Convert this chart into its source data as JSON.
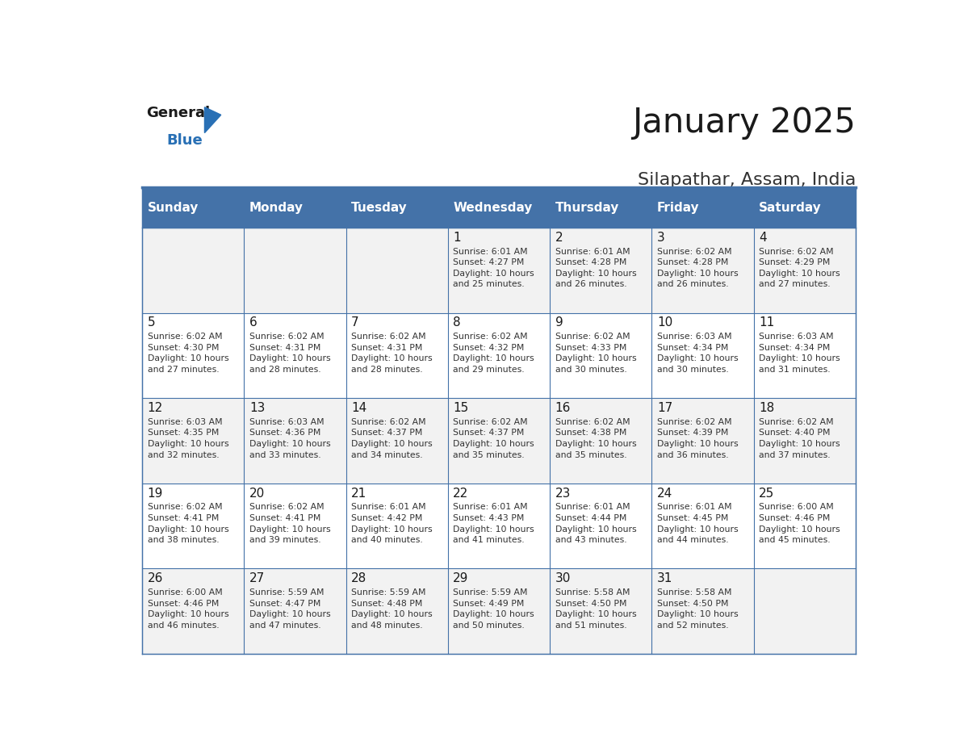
{
  "title": "January 2025",
  "subtitle": "Silapathar, Assam, India",
  "days_of_week": [
    "Sunday",
    "Monday",
    "Tuesday",
    "Wednesday",
    "Thursday",
    "Friday",
    "Saturday"
  ],
  "header_bg": "#4472a8",
  "header_text": "#ffffff",
  "row_bg_even": "#f2f2f2",
  "row_bg_odd": "#ffffff",
  "cell_text_color": "#333333",
  "day_num_color": "#1a1a1a",
  "border_color": "#4472a8",
  "title_color": "#1a1a1a",
  "subtitle_color": "#333333",
  "logo_general_color": "#1a1a1a",
  "logo_blue_color": "#2970b5",
  "calendar_data": [
    [
      {
        "day": 0,
        "info": ""
      },
      {
        "day": 0,
        "info": ""
      },
      {
        "day": 0,
        "info": ""
      },
      {
        "day": 1,
        "info": "Sunrise: 6:01 AM\nSunset: 4:27 PM\nDaylight: 10 hours\nand 25 minutes."
      },
      {
        "day": 2,
        "info": "Sunrise: 6:01 AM\nSunset: 4:28 PM\nDaylight: 10 hours\nand 26 minutes."
      },
      {
        "day": 3,
        "info": "Sunrise: 6:02 AM\nSunset: 4:28 PM\nDaylight: 10 hours\nand 26 minutes."
      },
      {
        "day": 4,
        "info": "Sunrise: 6:02 AM\nSunset: 4:29 PM\nDaylight: 10 hours\nand 27 minutes."
      }
    ],
    [
      {
        "day": 5,
        "info": "Sunrise: 6:02 AM\nSunset: 4:30 PM\nDaylight: 10 hours\nand 27 minutes."
      },
      {
        "day": 6,
        "info": "Sunrise: 6:02 AM\nSunset: 4:31 PM\nDaylight: 10 hours\nand 28 minutes."
      },
      {
        "day": 7,
        "info": "Sunrise: 6:02 AM\nSunset: 4:31 PM\nDaylight: 10 hours\nand 28 minutes."
      },
      {
        "day": 8,
        "info": "Sunrise: 6:02 AM\nSunset: 4:32 PM\nDaylight: 10 hours\nand 29 minutes."
      },
      {
        "day": 9,
        "info": "Sunrise: 6:02 AM\nSunset: 4:33 PM\nDaylight: 10 hours\nand 30 minutes."
      },
      {
        "day": 10,
        "info": "Sunrise: 6:03 AM\nSunset: 4:34 PM\nDaylight: 10 hours\nand 30 minutes."
      },
      {
        "day": 11,
        "info": "Sunrise: 6:03 AM\nSunset: 4:34 PM\nDaylight: 10 hours\nand 31 minutes."
      }
    ],
    [
      {
        "day": 12,
        "info": "Sunrise: 6:03 AM\nSunset: 4:35 PM\nDaylight: 10 hours\nand 32 minutes."
      },
      {
        "day": 13,
        "info": "Sunrise: 6:03 AM\nSunset: 4:36 PM\nDaylight: 10 hours\nand 33 minutes."
      },
      {
        "day": 14,
        "info": "Sunrise: 6:02 AM\nSunset: 4:37 PM\nDaylight: 10 hours\nand 34 minutes."
      },
      {
        "day": 15,
        "info": "Sunrise: 6:02 AM\nSunset: 4:37 PM\nDaylight: 10 hours\nand 35 minutes."
      },
      {
        "day": 16,
        "info": "Sunrise: 6:02 AM\nSunset: 4:38 PM\nDaylight: 10 hours\nand 35 minutes."
      },
      {
        "day": 17,
        "info": "Sunrise: 6:02 AM\nSunset: 4:39 PM\nDaylight: 10 hours\nand 36 minutes."
      },
      {
        "day": 18,
        "info": "Sunrise: 6:02 AM\nSunset: 4:40 PM\nDaylight: 10 hours\nand 37 minutes."
      }
    ],
    [
      {
        "day": 19,
        "info": "Sunrise: 6:02 AM\nSunset: 4:41 PM\nDaylight: 10 hours\nand 38 minutes."
      },
      {
        "day": 20,
        "info": "Sunrise: 6:02 AM\nSunset: 4:41 PM\nDaylight: 10 hours\nand 39 minutes."
      },
      {
        "day": 21,
        "info": "Sunrise: 6:01 AM\nSunset: 4:42 PM\nDaylight: 10 hours\nand 40 minutes."
      },
      {
        "day": 22,
        "info": "Sunrise: 6:01 AM\nSunset: 4:43 PM\nDaylight: 10 hours\nand 41 minutes."
      },
      {
        "day": 23,
        "info": "Sunrise: 6:01 AM\nSunset: 4:44 PM\nDaylight: 10 hours\nand 43 minutes."
      },
      {
        "day": 24,
        "info": "Sunrise: 6:01 AM\nSunset: 4:45 PM\nDaylight: 10 hours\nand 44 minutes."
      },
      {
        "day": 25,
        "info": "Sunrise: 6:00 AM\nSunset: 4:46 PM\nDaylight: 10 hours\nand 45 minutes."
      }
    ],
    [
      {
        "day": 26,
        "info": "Sunrise: 6:00 AM\nSunset: 4:46 PM\nDaylight: 10 hours\nand 46 minutes."
      },
      {
        "day": 27,
        "info": "Sunrise: 5:59 AM\nSunset: 4:47 PM\nDaylight: 10 hours\nand 47 minutes."
      },
      {
        "day": 28,
        "info": "Sunrise: 5:59 AM\nSunset: 4:48 PM\nDaylight: 10 hours\nand 48 minutes."
      },
      {
        "day": 29,
        "info": "Sunrise: 5:59 AM\nSunset: 4:49 PM\nDaylight: 10 hours\nand 50 minutes."
      },
      {
        "day": 30,
        "info": "Sunrise: 5:58 AM\nSunset: 4:50 PM\nDaylight: 10 hours\nand 51 minutes."
      },
      {
        "day": 31,
        "info": "Sunrise: 5:58 AM\nSunset: 4:50 PM\nDaylight: 10 hours\nand 52 minutes."
      },
      {
        "day": 0,
        "info": ""
      }
    ]
  ]
}
